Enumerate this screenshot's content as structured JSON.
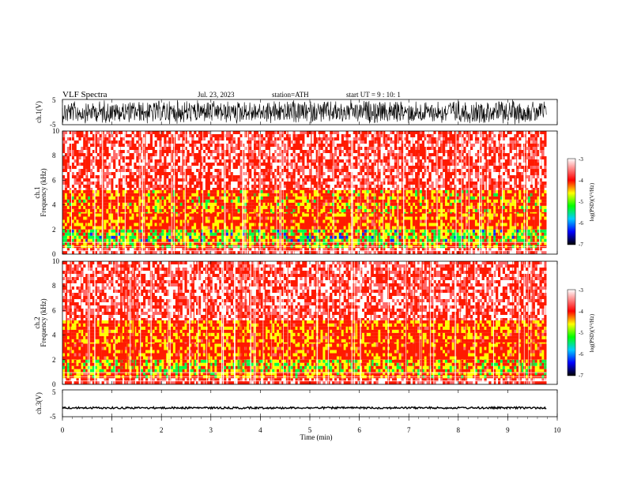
{
  "header": {
    "title": "VLF  Spectra",
    "date": "Jul.  23, 2023",
    "station": "station=ATH",
    "start": "start  UT  =    9  : 10: 1"
  },
  "panels": {
    "ch1_wave": {
      "label": "ch.1(V)",
      "ticks": [
        "5",
        "-5"
      ]
    },
    "ch1_spec": {
      "label1": "ch.1",
      "label2": "Frequency  (kHz)",
      "ticks": [
        "10",
        "8",
        "6",
        "4",
        "2",
        "0"
      ]
    },
    "ch2_spec": {
      "label1": "ch.2",
      "label2": "Frequency  (kHz)",
      "ticks": [
        "10",
        "8",
        "6",
        "4",
        "2",
        "0"
      ]
    },
    "ch3_wave": {
      "label": "ch.3(V)",
      "ticks": [
        "5",
        "-5"
      ]
    }
  },
  "xaxis": {
    "label": "Time  (min)",
    "ticks": [
      "0",
      "1",
      "2",
      "3",
      "4",
      "5",
      "6",
      "7",
      "8",
      "9",
      "10"
    ]
  },
  "colorbar": {
    "label": "log(PSD)(V²/Hz)",
    "ticks": [
      "-3",
      "-4",
      "-5",
      "-6",
      "-7"
    ]
  },
  "colors": {
    "red": "#ff1a00",
    "yellow": "#ffff00",
    "green": "#00ff44",
    "blue": "#0033ff",
    "black": "#000000"
  },
  "chart_data": [
    {
      "type": "line",
      "title": "ch.1(V)",
      "xlim": [
        0,
        10
      ],
      "ylim": [
        -5,
        5
      ],
      "note_level": "dense oscillation filling the full range"
    },
    {
      "type": "heatmap",
      "title": "ch.1",
      "ylabel": "Frequency  (kHz)",
      "xlim": [
        0,
        10
      ],
      "ylim": [
        0,
        10
      ],
      "bands_khz": [
        [
          0,
          0.5,
          -3.5
        ],
        [
          0.5,
          1.0,
          -4.5
        ],
        [
          1.0,
          2.0,
          -4.8
        ],
        [
          2.0,
          3.3,
          -4.2
        ],
        [
          3.3,
          5.2,
          -4.3
        ],
        [
          5.2,
          10,
          -3.7
        ]
      ],
      "colorbar": {
        "range": [
          -7,
          -3
        ],
        "label": "log(PSD)(V²/Hz)"
      }
    },
    {
      "type": "heatmap",
      "title": "ch.2",
      "ylabel": "Frequency  (kHz)",
      "xlim": [
        0,
        10
      ],
      "ylim": [
        0,
        10
      ],
      "bands_khz": [
        [
          0,
          0.5,
          -3.6
        ],
        [
          0.5,
          1.0,
          -4.3
        ],
        [
          1.0,
          2.0,
          -4.6
        ],
        [
          2.0,
          3.3,
          -4.1
        ],
        [
          3.3,
          5.2,
          -4.2
        ],
        [
          5.2,
          10,
          -3.6
        ]
      ],
      "colorbar": {
        "range": [
          -7,
          -3
        ],
        "label": "log(PSD)(V²/Hz)"
      }
    },
    {
      "type": "line",
      "title": "ch.3(V)",
      "xlim": [
        0,
        10
      ],
      "ylim": [
        -5,
        5
      ],
      "baseline_level": -2.0,
      "xlabel": "Time  (min)"
    }
  ]
}
